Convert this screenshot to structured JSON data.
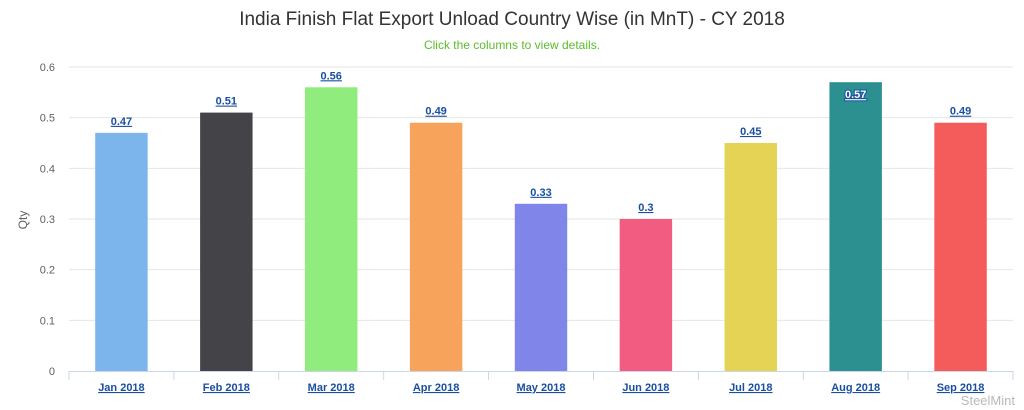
{
  "chart_data": {
    "type": "bar",
    "title": "India Finish Flat Export Unload Country Wise (in MnT) - CY 2018",
    "subtitle": "Click the columns to view details.",
    "ylabel": "Qty",
    "xlabel": "",
    "ylim": [
      0,
      0.6
    ],
    "yticks": [
      "0",
      "0.1",
      "0.2",
      "0.3",
      "0.4",
      "0.5",
      "0.6"
    ],
    "ytick_values": [
      0,
      0.1,
      0.2,
      0.3,
      0.4,
      0.5,
      0.6
    ],
    "grid": true,
    "categories": [
      "Jan 2018",
      "Feb 2018",
      "Mar 2018",
      "Apr 2018",
      "May 2018",
      "Jun 2018",
      "Jul 2018",
      "Aug 2018",
      "Sep 2018"
    ],
    "values": [
      0.47,
      0.51,
      0.56,
      0.49,
      0.33,
      0.3,
      0.45,
      0.57,
      0.49
    ],
    "labels": [
      "0.47",
      "0.51",
      "0.56",
      "0.49",
      "0.33",
      "0.3",
      "0.45",
      "0.57",
      "0.49"
    ],
    "colors": [
      "#7cb5ec",
      "#434348",
      "#90ed7d",
      "#f7a35c",
      "#8085e9",
      "#f15c80",
      "#e4d354",
      "#2b908f",
      "#f45b5b"
    ]
  },
  "credit": "SteelMint"
}
